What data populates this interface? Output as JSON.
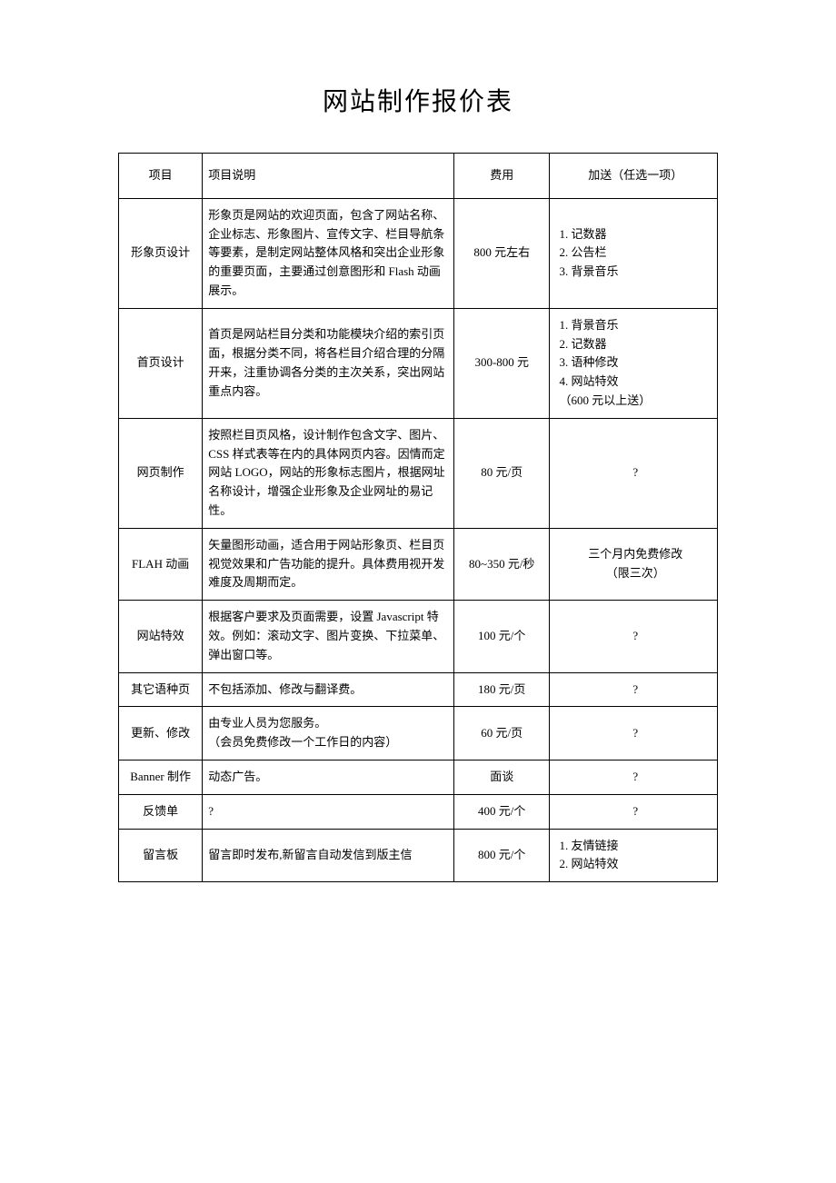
{
  "title": "网站制作报价表",
  "headers": {
    "project": "项目",
    "description": "项目说明",
    "cost": "费用",
    "bonus": "加送（任选一项）"
  },
  "rows": [
    {
      "project": "形象页设计",
      "description": "形象页是网站的欢迎页面，包含了网站名称、企业标志、形象图片、宣传文字、栏目导航条等要素，是制定网站整体风格和突出企业形象的重要页面，主要通过创意图形和 Flash 动画展示。",
      "cost": "800 元左右",
      "bonus": "1. 记数器\n2. 公告栏\n3. 背景音乐",
      "bonus_align": "left"
    },
    {
      "project": "首页设计",
      "description": "首页是网站栏目分类和功能模块介绍的索引页面，根据分类不同，将各栏目介绍合理的分隔开来，注重协调各分类的主次关系，突出网站重点内容。",
      "cost": "300-800 元",
      "bonus": "1. 背景音乐\n2. 记数器\n3. 语种修改\n4. 网站特效\n（600 元以上送）",
      "bonus_align": "left"
    },
    {
      "project": "网页制作",
      "description": "按照栏目页风格，设计制作包含文字、图片、CSS 样式表等在内的具体网页内容。因情而定网站 LOGO，网站的形象标志图片，根据网址名称设计，增强企业形象及企业网址的易记性。",
      "cost": "80 元/页",
      "bonus": "?",
      "bonus_align": "center"
    },
    {
      "project": "FLAH 动画",
      "description": "矢量图形动画，适合用于网站形象页、栏目页视觉效果和广告功能的提升。具体费用视开发难度及周期而定。",
      "cost": "80~350 元/秒",
      "bonus": "三个月内免费修改\n（限三次）",
      "bonus_align": "center"
    },
    {
      "project": "网站特效",
      "description": "根据客户要求及页面需要，设置 Javascript 特效。例如：滚动文字、图片变换、下拉菜单、弹出窗口等。",
      "cost": "100 元/个",
      "bonus": "?",
      "bonus_align": "center"
    },
    {
      "project": "其它语种页",
      "description": "不包括添加、修改与翻译费。",
      "cost": "180 元/页",
      "bonus": "?",
      "bonus_align": "center"
    },
    {
      "project": "更新、修改",
      "description": "由专业人员为您服务。\n（会员免费修改一个工作日的内容）",
      "cost": "60 元/页",
      "bonus": "?",
      "bonus_align": "center"
    },
    {
      "project": "Banner 制作",
      "description": "动态广告。",
      "cost": "面谈",
      "bonus": "?",
      "bonus_align": "center"
    },
    {
      "project": "反馈单",
      "description": "?",
      "cost": "400 元/个",
      "bonus": "?",
      "bonus_align": "center"
    },
    {
      "project": "留言板",
      "description": "留言即时发布,新留言自动发信到版主信",
      "cost": "800 元/个",
      "bonus": "1. 友情链接\n2. 网站特效",
      "bonus_align": "left"
    }
  ]
}
